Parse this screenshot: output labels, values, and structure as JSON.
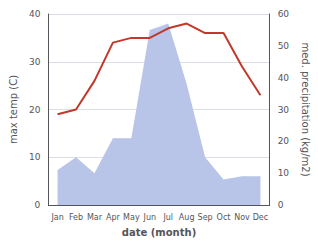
{
  "chart_data": {
    "type": "line",
    "categories": [
      "Jan",
      "Feb",
      "Mar",
      "Apr",
      "May",
      "Jun",
      "Jul",
      "Aug",
      "Sep",
      "Oct",
      "Nov",
      "Dec"
    ],
    "xlabel": "date (month)",
    "ylabel": "max temp (C)",
    "y2label": "med. precipitation (kg/m2)",
    "series": [
      {
        "type": "area",
        "axis": "y2",
        "color": "#b8c4e8",
        "values": [
          11,
          15,
          10,
          21,
          21,
          55,
          57,
          38,
          15,
          8,
          9,
          9
        ]
      },
      {
        "type": "line",
        "color": "#c0392b",
        "values": [
          19,
          20,
          26,
          34,
          35,
          35,
          37,
          38,
          36,
          36,
          29,
          23
        ]
      }
    ],
    "ylim": [
      0,
      40
    ],
    "yticks": [
      0,
      10,
      20,
      30,
      40
    ],
    "y2lim": [
      0,
      60
    ],
    "y2ticks": [
      0,
      10,
      20,
      30,
      40,
      50,
      60
    ],
    "grid": true
  }
}
